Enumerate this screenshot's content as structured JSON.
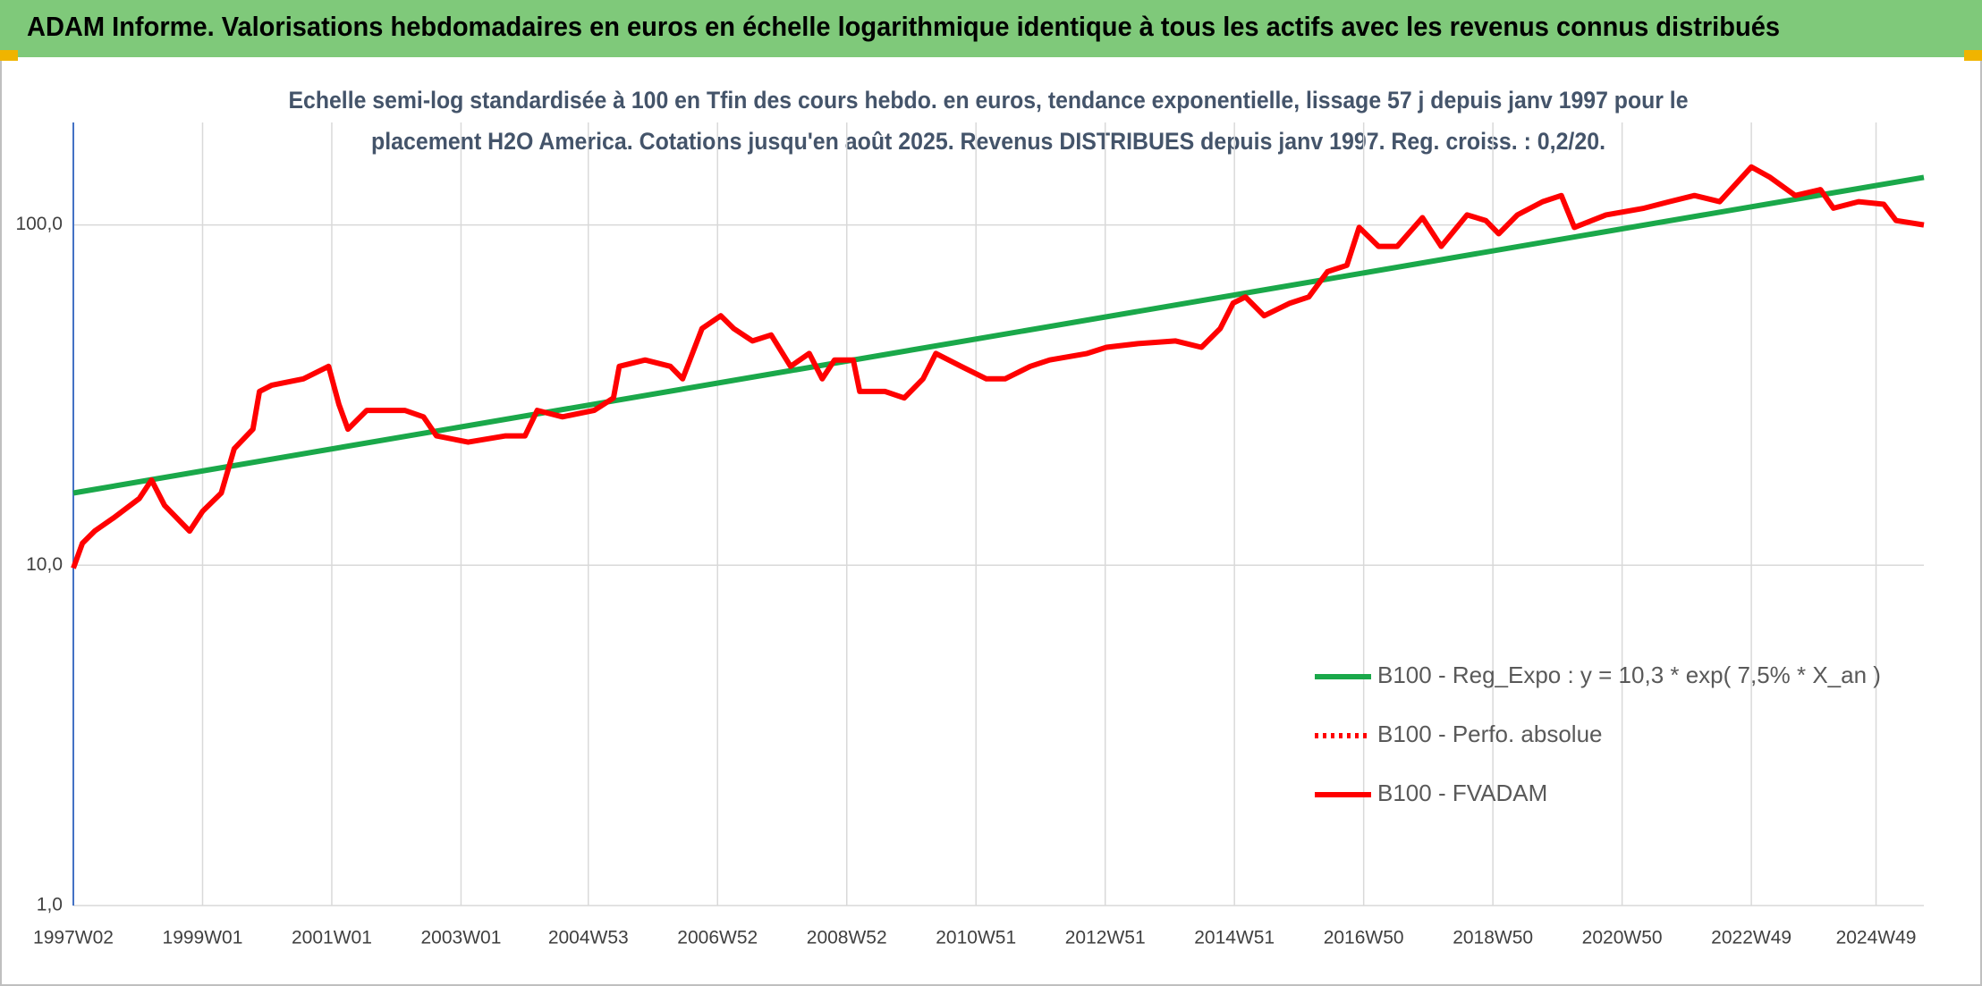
{
  "chart_data": {
    "type": "line",
    "title": "ADAM Informe. Valorisations hebdomadaires en euros en échelle logarithmique identique à tous les actifs avec les revenus connus distribués",
    "subtitle": [
      "Echelle semi-log standardisée à 100 en Tfin des cours hebdo. en euros, tendance exponentielle, lissage 57 j depuis janv 1997 pour le",
      "placement H2O America. Cotations jusqu'en août 2025. Revenus DISTRIBUES depuis janv 1997. Reg. croiss. : 0,2/20."
    ],
    "log_scale": true,
    "grid": true,
    "legend": "lower right",
    "xlim": [
      1997.03,
      2025.67
    ],
    "ylim": [
      1,
      200
    ],
    "yticks": [
      {
        "value": 1,
        "label": "1,0"
      },
      {
        "value": 10,
        "label": "10,0"
      },
      {
        "value": 100,
        "label": "100,0"
      }
    ],
    "xticks": [
      {
        "value": 1997.03,
        "label": "1997W02"
      },
      {
        "value": 1999.03,
        "label": "1999W01"
      },
      {
        "value": 2001.03,
        "label": "2001W01"
      },
      {
        "value": 2003.03,
        "label": "2003W01"
      },
      {
        "value": 2005.0,
        "label": "2004W53"
      },
      {
        "value": 2007.0,
        "label": "2006W52"
      },
      {
        "value": 2009.0,
        "label": "2008W52"
      },
      {
        "value": 2011.0,
        "label": "2010W51"
      },
      {
        "value": 2013.0,
        "label": "2012W51"
      },
      {
        "value": 2015.0,
        "label": "2014W51"
      },
      {
        "value": 2017.0,
        "label": "2016W50"
      },
      {
        "value": 2019.0,
        "label": "2018W50"
      },
      {
        "value": 2021.0,
        "label": "2020W50"
      },
      {
        "value": 2023.0,
        "label": "2022W49"
      },
      {
        "value": 2024.93,
        "label": "2024W49"
      }
    ],
    "series": [
      {
        "name": "B100 - Reg_Expo : y = 10,3 * exp( 7,5% *  X_an )",
        "color": "#1aa84a",
        "dashed": false,
        "x": [
          1997.03,
          2025.67
        ],
        "values": [
          16.3,
          138
        ]
      },
      {
        "name": "B100 - Perfo. absolue",
        "color": "#ff0000",
        "dashed": true,
        "x": [],
        "values": []
      },
      {
        "name": "B100 - FVADAM",
        "color": "#ff0000",
        "dashed": false,
        "x": [
          1997.03,
          1997.17,
          1997.36,
          1997.66,
          1998.05,
          1998.24,
          1998.44,
          1998.83,
          1999.03,
          1999.32,
          1999.52,
          1999.81,
          1999.91,
          2000.1,
          2000.59,
          2000.98,
          2001.14,
          2001.28,
          2001.57,
          2002.16,
          2002.45,
          2002.65,
          2003.14,
          2003.72,
          2004.02,
          2004.21,
          2004.6,
          2005.09,
          2005.39,
          2005.48,
          2005.88,
          2006.27,
          2006.46,
          2006.76,
          2007.05,
          2007.25,
          2007.54,
          2007.83,
          2008.13,
          2008.42,
          2008.62,
          2008.81,
          2009.1,
          2009.2,
          2009.59,
          2009.89,
          2010.18,
          2010.38,
          2010.77,
          2011.16,
          2011.45,
          2011.84,
          2012.14,
          2012.72,
          2013.02,
          2013.51,
          2014.09,
          2014.49,
          2014.78,
          2014.98,
          2015.17,
          2015.46,
          2015.86,
          2016.15,
          2016.44,
          2016.74,
          2016.93,
          2017.23,
          2017.52,
          2017.91,
          2018.2,
          2018.6,
          2018.89,
          2019.09,
          2019.38,
          2019.77,
          2020.06,
          2020.26,
          2020.75,
          2021.34,
          2021.73,
          2022.12,
          2022.51,
          2023.0,
          2023.29,
          2023.68,
          2024.07,
          2024.27,
          2024.66,
          2025.05,
          2025.24,
          2025.67
        ],
        "values": [
          9.8,
          11.6,
          12.6,
          13.8,
          15.7,
          17.8,
          15.0,
          12.6,
          14.4,
          16.3,
          22.0,
          25.1,
          32.4,
          33.8,
          35.3,
          38.4,
          29.7,
          25.1,
          28.5,
          28.5,
          27.3,
          24.0,
          23.0,
          24.0,
          24.0,
          28.5,
          27.3,
          28.5,
          31.0,
          38.4,
          40.1,
          38.4,
          35.3,
          49.6,
          54.1,
          49.6,
          45.6,
          47.5,
          38.4,
          41.9,
          35.3,
          40.1,
          40.1,
          32.4,
          32.4,
          31.0,
          35.3,
          41.9,
          38.4,
          35.3,
          35.3,
          38.4,
          40.1,
          41.9,
          43.7,
          44.8,
          45.6,
          43.7,
          49.6,
          58.9,
          61.4,
          54.1,
          58.9,
          61.4,
          72.9,
          76.1,
          98.3,
          86.5,
          86.5,
          105,
          86.5,
          107,
          103,
          94.2,
          107,
          117,
          122,
          98.3,
          107,
          112,
          117,
          122,
          117,
          148,
          138,
          122,
          127,
          112,
          117,
          115,
          103,
          100
        ]
      }
    ]
  }
}
